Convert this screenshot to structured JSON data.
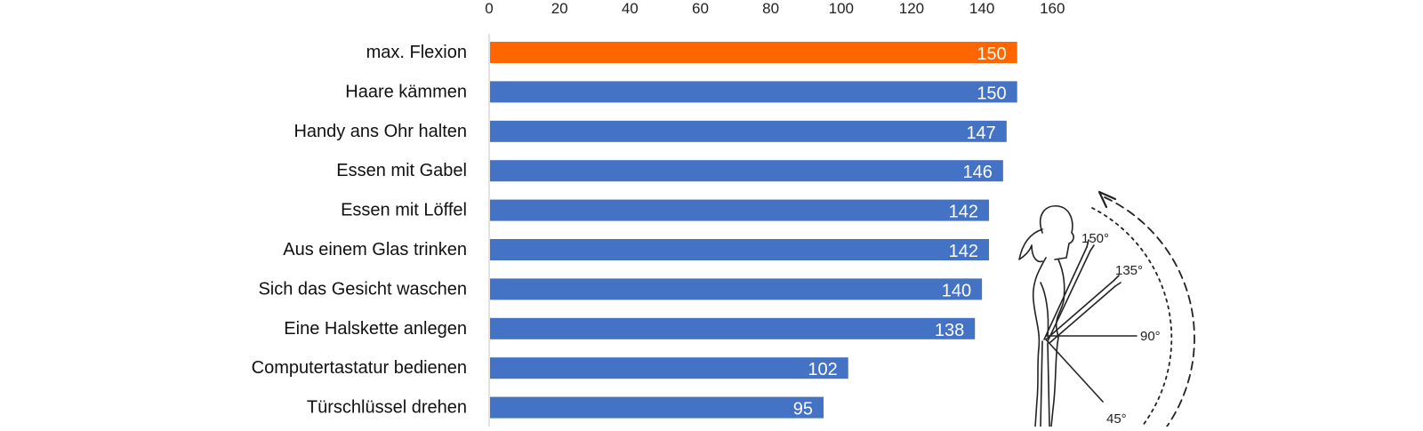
{
  "chart_data": {
    "type": "bar",
    "orientation": "horizontal",
    "title": "",
    "xlabel": "",
    "ylabel": "",
    "xlim": [
      0,
      160
    ],
    "x_ticks": [
      0,
      20,
      40,
      60,
      80,
      100,
      120,
      140,
      160
    ],
    "x_axis_position": "top",
    "grid": false,
    "legend": "none",
    "categories": [
      "max. Flexion",
      "Haare kämmen",
      "Handy ans Ohr halten",
      "Essen mit Gabel",
      "Essen mit Löffel",
      "Aus einem Glas trinken",
      "Sich das Gesicht waschen",
      "Eine Halskette anlegen",
      "Computertastatur bedienen",
      "Türschlüssel drehen"
    ],
    "values": [
      150,
      150,
      147,
      146,
      142,
      142,
      140,
      138,
      102,
      95
    ],
    "highlight_color": "#ff6600",
    "bar_color": "#4472c4",
    "label_color": "#ffffff"
  },
  "illustration": {
    "type": "shoulder-flexion-figure",
    "angle_labels": [
      "150°",
      "135°",
      "90°",
      "45°"
    ]
  }
}
